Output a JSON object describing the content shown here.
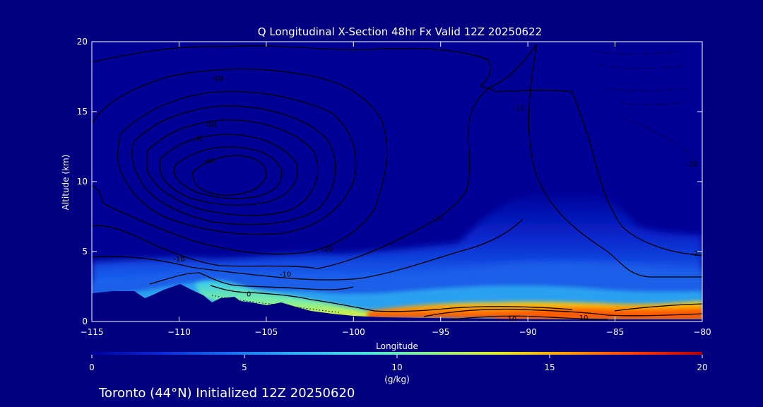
{
  "chart_data": {
    "type": "heatmap",
    "title": "Q Longitudinal X-Section 48hr  Fx Valid 12Z 20250622",
    "xlabel": "Longitude",
    "ylabel": "Altitude (km)",
    "xlim": [
      -115,
      -80
    ],
    "ylim": [
      0,
      20
    ],
    "x_ticks": [
      -115,
      -110,
      -105,
      -100,
      -95,
      -90,
      -85,
      -80
    ],
    "x_tick_labels": [
      "−115",
      "−110",
      "−105",
      "−100",
      "−95",
      "−90",
      "−85",
      "−80"
    ],
    "y_ticks": [
      0,
      5,
      10,
      15,
      20
    ],
    "y_tick_labels": [
      "0",
      "5",
      "10",
      "15",
      "20"
    ],
    "grid": false,
    "colorbar": {
      "label": "(g/kg)",
      "range": [
        0,
        20
      ],
      "ticks": [
        0,
        5,
        10,
        15,
        20
      ],
      "tick_labels": [
        "0",
        "5",
        "10",
        "15",
        "20"
      ],
      "colors": [
        "#0000a0",
        "#0a28d8",
        "#1a6cf0",
        "#2cb4f4",
        "#46e4e0",
        "#8cf08c",
        "#e4ec28",
        "#ff9c00",
        "#ff3c00",
        "#b40000"
      ]
    },
    "bottom_label": "Toronto (44°N) Initialized 12Z 20250620",
    "moisture_layer_top_km": [
      [
        -115,
        4.2
      ],
      [
        -110,
        4.4
      ],
      [
        -107,
        4.6
      ],
      [
        -105,
        4.5
      ],
      [
        -102,
        4.8
      ],
      [
        -100,
        4.9
      ],
      [
        -97,
        5.2
      ],
      [
        -95,
        5.6
      ],
      [
        -92,
        8.0
      ],
      [
        -89,
        8.2
      ],
      [
        -86,
        6.8
      ],
      [
        -83,
        6.4
      ],
      [
        -80,
        6.2
      ]
    ],
    "moisture_core_g_per_kg": [
      {
        "lon": -106,
        "alt_km": 2.0,
        "q": 12
      },
      {
        "lon": -103,
        "alt_km": 1.0,
        "q": 13
      },
      {
        "lon": -95,
        "alt_km": 0.6,
        "q": 15
      },
      {
        "lon": -88,
        "alt_km": 0.3,
        "q": 18
      },
      {
        "lon": -82,
        "alt_km": 0.4,
        "q": 17
      }
    ],
    "contour_labels": [
      {
        "text": "-10",
        "lon": -107.8,
        "alt_km": 17.4
      },
      {
        "text": "-20",
        "lon": -108.2,
        "alt_km": 14.1
      },
      {
        "text": "-30",
        "lon": -108.9,
        "alt_km": 13.1
      },
      {
        "text": "-40",
        "lon": -108.3,
        "alt_km": 11.5
      },
      {
        "text": "-10",
        "lon": -110.0,
        "alt_km": 4.5
      },
      {
        "text": "-10",
        "lon": -103.9,
        "alt_km": 3.4
      },
      {
        "text": "-20",
        "lon": -101.5,
        "alt_km": 5.2
      },
      {
        "text": "-10",
        "lon": -95.2,
        "alt_km": 7.4
      },
      {
        "text": "0",
        "lon": -106.0,
        "alt_km": 2.0
      },
      {
        "text": "-10",
        "lon": -90.5,
        "alt_km": 15.3
      },
      {
        "text": "-20",
        "lon": -80.6,
        "alt_km": 11.3
      },
      {
        "text": "-20",
        "lon": -80.3,
        "alt_km": 4.9
      },
      {
        "text": "10",
        "lon": -90.9,
        "alt_km": 0.2
      },
      {
        "text": "10",
        "lon": -86.8,
        "alt_km": 0.3
      }
    ]
  }
}
